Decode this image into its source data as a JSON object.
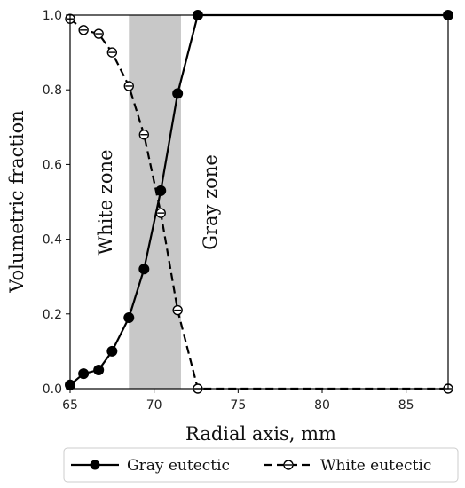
{
  "chart_data": {
    "type": "line",
    "title": "",
    "xlabel": "Radial axis, mm",
    "ylabel": "Volumetric fraction",
    "xlim": [
      65,
      87.5
    ],
    "ylim": [
      0,
      1.0
    ],
    "x_ticks": [
      "65",
      "70",
      "75",
      "80",
      "85"
    ],
    "y_ticks": [
      "0.0",
      "0.2",
      "0.4",
      "0.6",
      "0.8",
      "1.0"
    ],
    "grid": false,
    "legend_position": "bottom",
    "shaded_region": {
      "x_start": 68.5,
      "x_end": 71.6,
      "color": "#c8c8c8"
    },
    "annotations": [
      "White zone",
      "Gray zone"
    ],
    "series": [
      {
        "name": "Gray eutectic",
        "style": "solid",
        "marker": "filled-circle",
        "color": "#000000",
        "x": [
          65.0,
          65.8,
          66.7,
          67.5,
          68.5,
          69.4,
          70.4,
          71.4,
          72.6,
          87.5
        ],
        "y": [
          0.01,
          0.04,
          0.05,
          0.1,
          0.19,
          0.32,
          0.53,
          0.79,
          1.0,
          1.0
        ]
      },
      {
        "name": "White eutectic",
        "style": "dashed",
        "marker": "open-circle",
        "color": "#000000",
        "x": [
          65.0,
          65.8,
          66.7,
          67.5,
          68.5,
          69.4,
          70.4,
          71.4,
          72.6,
          87.5
        ],
        "y": [
          0.99,
          0.96,
          0.95,
          0.9,
          0.81,
          0.68,
          0.47,
          0.21,
          0.0,
          0.0
        ]
      }
    ]
  }
}
